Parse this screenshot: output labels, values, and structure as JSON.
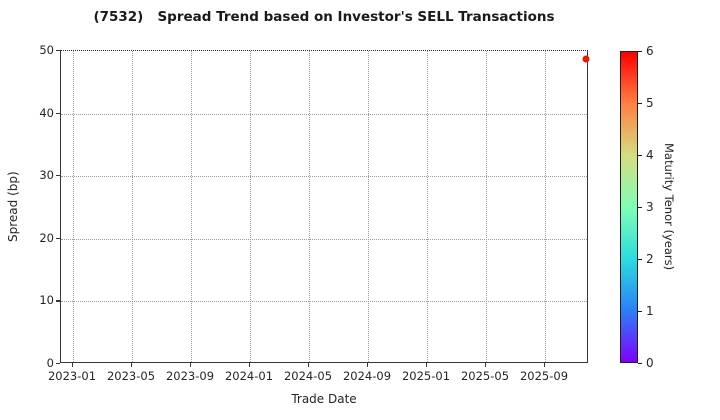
{
  "title": "(7532)   Spread Trend based on Investor's SELL Transactions",
  "chart_data": {
    "type": "scatter",
    "title": "(7532)   Spread Trend based on Investor's SELL Transactions",
    "xlabel": "Trade Date",
    "ylabel": "Spread (bp)",
    "x_tick_labels": [
      "2023-01",
      "2023-05",
      "2023-09",
      "2024-01",
      "2024-05",
      "2024-09",
      "2025-01",
      "2025-05",
      "2025-09"
    ],
    "x_start_month": "2023-01",
    "x_tick_interval_months": 4,
    "ylim": [
      0,
      50
    ],
    "y_ticks": [
      0,
      10,
      20,
      30,
      40,
      50
    ],
    "grid": "dotted",
    "legend_position": "none",
    "points": [
      {
        "trade_date": "2025-11-27",
        "spread_bp": 48.5,
        "maturity_tenor_years": 6.0,
        "color": "#fa0f00"
      }
    ],
    "colorbar": {
      "label": "Maturity Tenor (years)",
      "min": 0,
      "max": 6,
      "ticks": [
        0,
        1,
        2,
        3,
        4,
        5,
        6
      ],
      "colormap": "rainbow",
      "gradient_stops": [
        "#8000ff",
        "#2b80f6",
        "#2bdddd",
        "#80ffb4",
        "#d5dd80",
        "#ff8042",
        "#ff0000"
      ]
    },
    "colors": {
      "grid": "#9b9b9b",
      "spine": "#363636",
      "text": "#262626"
    }
  }
}
